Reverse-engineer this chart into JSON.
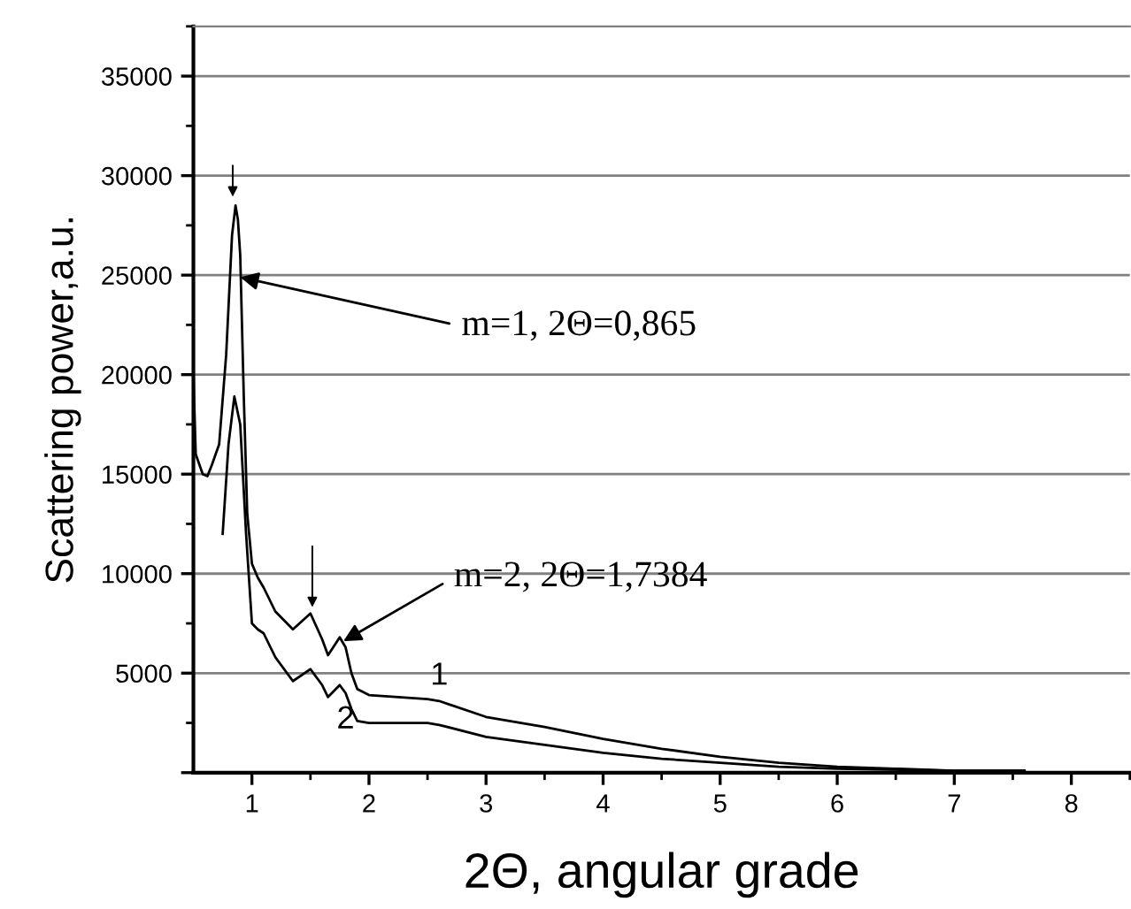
{
  "chart_data": {
    "type": "line",
    "xlabel": "2Θ, angular grade",
    "ylabel": "Scattering power,a.u.",
    "xlim": [
      0.5,
      8.5
    ],
    "ylim": [
      0,
      37500
    ],
    "xticks": [
      1,
      2,
      3,
      4,
      5,
      6,
      7,
      8
    ],
    "yticks": [
      {
        "value": 0,
        "label": null
      },
      5000,
      10000,
      15000,
      20000,
      25000,
      30000,
      35000
    ],
    "grid": "y",
    "legend": false,
    "marker": "none",
    "line_style": "solid",
    "annotations": [
      {
        "text": "m=1, 2Θ=0,865",
        "x": 0.9,
        "y": 24900
      },
      {
        "text": "m=2, 2Θ=1,7384",
        "x": 1.78,
        "y": 6600
      }
    ],
    "series": [
      {
        "name": "1",
        "color": "#000000",
        "x": [
          0.5,
          0.52,
          0.58,
          0.62,
          0.66,
          0.72,
          0.78,
          0.83,
          0.86,
          0.88,
          0.9,
          0.93,
          0.96,
          1.0,
          1.05,
          1.1,
          1.2,
          1.35,
          1.5,
          1.6,
          1.65,
          1.75,
          1.8,
          1.85,
          1.9,
          2.0,
          2.5,
          2.6,
          3.0,
          3.5,
          4.0,
          4.5,
          5.0,
          5.5,
          6.0,
          6.5,
          7.0,
          7.6
        ],
        "values": [
          20000,
          16000,
          15000,
          14900,
          15500,
          16500,
          21000,
          27000,
          28500,
          27800,
          26000,
          19000,
          13000,
          10500,
          9800,
          9300,
          8100,
          7200,
          8000,
          6700,
          5900,
          6800,
          6300,
          5000,
          4200,
          3900,
          3700,
          3600,
          2800,
          2300,
          1700,
          1200,
          800,
          500,
          300,
          200,
          100,
          100
        ]
      },
      {
        "name": "2",
        "color": "#000000",
        "x": [
          0.75,
          0.8,
          0.85,
          0.9,
          0.95,
          1.0,
          1.05,
          1.1,
          1.2,
          1.35,
          1.5,
          1.6,
          1.65,
          1.75,
          1.8,
          1.85,
          1.9,
          2.0,
          2.5,
          2.6,
          3.0,
          3.5,
          4.0,
          4.5,
          5.0,
          5.5,
          6.0,
          7.0,
          7.6
        ],
        "values": [
          12000,
          16500,
          18900,
          17500,
          12000,
          7500,
          7200,
          7000,
          5800,
          4600,
          5200,
          4400,
          3800,
          4400,
          4000,
          3200,
          2600,
          2500,
          2500,
          2400,
          1800,
          1400,
          1000,
          700,
          500,
          300,
          200,
          100,
          100
        ]
      }
    ]
  }
}
